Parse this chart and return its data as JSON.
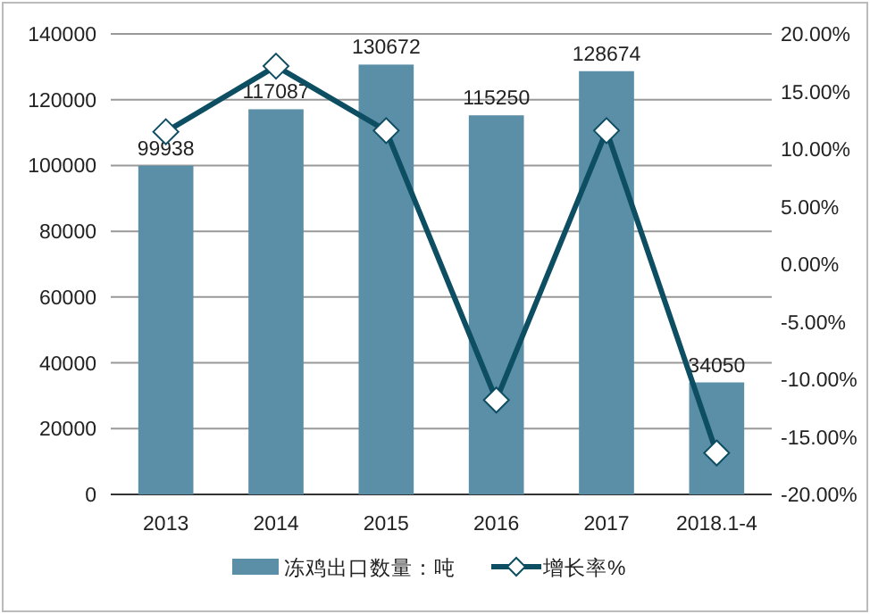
{
  "chart_data": {
    "type": "bar",
    "categories": [
      "2013",
      "2014",
      "2015",
      "2016",
      "2017",
      "2018.1-4"
    ],
    "series": [
      {
        "name": "冻鸡出口数量：吨",
        "color": "#5b8fa7",
        "values": [
          99938,
          117087,
          130672,
          115250,
          128674,
          34050
        ],
        "value_labels": [
          "99938",
          "117087",
          "130672",
          "115250",
          "128674",
          "34050"
        ]
      },
      {
        "name": "增长率%",
        "type": "line",
        "axis": "y2",
        "color": "#0e4e63",
        "marker": "diamond",
        "values": [
          11.5,
          17.2,
          11.6,
          -11.8,
          11.6,
          -16.4
        ]
      }
    ],
    "ylim": [
      0,
      140000
    ],
    "yticks": [
      0,
      20000,
      40000,
      60000,
      80000,
      100000,
      120000,
      140000
    ],
    "y2lim": [
      -20,
      20
    ],
    "y2ticks": [
      {
        "value": -20,
        "label": "-20.00%"
      },
      {
        "value": -15,
        "label": "-15.00%"
      },
      {
        "value": -10,
        "label": "-10.00%"
      },
      {
        "value": -5,
        "label": "-5.00%"
      },
      {
        "value": 0,
        "label": "0.00%"
      },
      {
        "value": 5,
        "label": "5.00%"
      },
      {
        "value": 10,
        "label": "10.00%"
      },
      {
        "value": 15,
        "label": "15.00%"
      },
      {
        "value": 20,
        "label": "20.00%"
      }
    ],
    "grid": "y",
    "legend": "bottom"
  }
}
